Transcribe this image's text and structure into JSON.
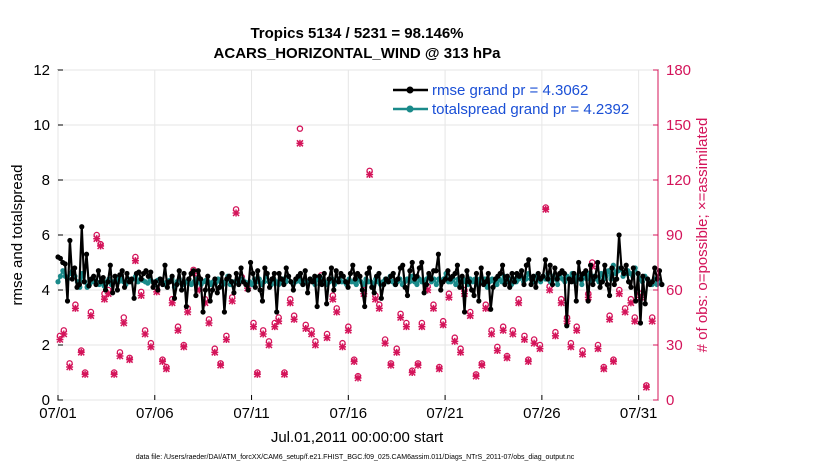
{
  "chart_data": {
    "type": "line",
    "title": "Tropics 5134 / 5231 = 98.146%",
    "subtitle": "ACARS_HORIZONTAL_WIND @ 313 hPa",
    "xlabel": "Jul.01,2011 00:00:00 start",
    "ylabel_left": "rmse and totalspread",
    "ylabel_right": "# of obs: o=possible; ×=assimilated",
    "footer": "data file: /Users/raeder/DAI/ATM_forcXX/CAM6_setup/f.e21.FHIST_BGC.f09_025.CAM6assim.011/Diags_NTrS_2011-07/obs_diag_output.nc",
    "x_tick_labels": [
      "07/01",
      "07/06",
      "07/11",
      "07/16",
      "07/21",
      "07/26",
      "07/31"
    ],
    "x_tick_days": [
      1,
      6,
      11,
      16,
      21,
      26,
      31
    ],
    "xlim": [
      1,
      32
    ],
    "ylim_left": [
      0,
      12
    ],
    "yticks_left": [
      "0",
      "2",
      "4",
      "6",
      "8",
      "10",
      "12"
    ],
    "ylim_right": [
      0,
      180
    ],
    "yticks_right": [
      "0",
      "30",
      "60",
      "90",
      "120",
      "150",
      "180"
    ],
    "legend_position": "top-right",
    "colors": {
      "rmse": "#000000",
      "spread": "#1a8a8a",
      "obs": "#d4145a",
      "legend_text": "#1a4fd6"
    },
    "series": [
      {
        "name": "rmse grand pr = 4.3062",
        "axis": "left",
        "values": [
          5.2,
          5.15,
          5.0,
          4.95,
          3.6,
          5.8,
          4.4,
          4.8,
          4.1,
          4.2,
          6.3,
          4.3,
          5.3,
          4.15,
          4.4,
          4.5,
          4.2,
          4.7,
          4.3,
          4.45,
          4.0,
          4.3,
          4.9,
          3.9,
          4.5,
          4.0,
          4.55,
          4.7,
          4.1,
          4.6,
          4.3,
          4.4,
          3.7,
          4.6,
          4.65,
          4.4,
          4.6,
          4.7,
          4.5,
          4.65,
          4.1,
          4.3,
          4.0,
          4.4,
          4.2,
          4.9,
          4.1,
          4.3,
          4.5,
          3.7,
          4.2,
          4.7,
          4.0,
          4.6,
          3.4,
          4.4,
          4.6,
          4.7,
          3.8,
          4.7,
          4.4,
          3.2,
          4.0,
          4.5,
          3.6,
          4.0,
          4.4,
          3.9,
          4.1,
          4.6,
          3.2,
          4.4,
          4.5,
          4.3,
          3.9,
          4.6,
          4.2,
          4.8,
          4.3,
          4.2,
          4.0,
          5.0,
          4.6,
          4.1,
          4.7,
          4.0,
          3.6,
          4.8,
          4.6,
          4.1,
          4.4,
          4.6,
          3.2,
          4.6,
          4.4,
          4.2,
          4.8,
          4.5,
          4.3,
          4.0,
          4.4,
          4.5,
          4.6,
          4.2,
          4.7,
          3.9,
          4.4,
          4.3,
          4.5,
          3.4,
          4.5,
          4.2,
          4.6,
          3.5,
          4.4,
          4.8,
          4.0,
          4.7,
          4.3,
          4.6,
          4.5,
          4.3,
          4.1,
          4.6,
          4.9,
          4.4,
          4.6,
          4.5,
          4.0,
          3.4,
          4.6,
          4.8,
          4.1,
          3.9,
          4.5,
          4.6,
          3.7,
          4.2,
          4.4,
          4.3,
          4.5,
          4.6,
          4.2,
          4.4,
          4.8,
          4.9,
          4.1,
          3.8,
          4.7,
          5.0,
          4.4,
          4.5,
          4.8,
          5.0,
          3.9,
          4.2,
          4.6,
          4.4,
          4.7,
          4.7,
          5.3,
          4.0,
          4.3,
          4.4,
          4.7,
          4.4,
          4.5,
          4.6,
          4.9,
          4.1,
          4.5,
          3.2,
          4.7,
          4.3,
          4.0,
          3.8,
          4.6,
          3.6,
          4.8,
          4.2,
          4.3,
          4.6,
          3.3,
          4.1,
          4.4,
          4.5,
          4.6,
          4.9,
          4.2,
          4.5,
          4.1,
          4.6,
          4.3,
          4.6,
          4.5,
          4.7,
          4.2,
          4.9,
          5.1,
          4.2,
          4.5,
          4.1,
          4.6,
          4.4,
          4.5,
          5.1,
          4.4,
          4.9,
          4.2,
          4.8,
          4.4,
          4.6,
          4.7,
          4.6,
          2.7,
          4.4,
          4.3,
          4.6,
          3.6,
          5.0,
          4.4,
          4.6,
          4.7,
          3.6,
          4.9,
          4.2,
          4.5,
          5.0,
          4.1,
          4.3,
          4.9,
          4.2,
          3.8,
          4.8,
          4.2,
          4.4,
          6.0,
          4.8,
          4.6,
          4.9,
          4.3,
          4.1,
          4.8,
          3.6,
          4.6,
          2.8,
          4.5,
          3.5,
          4.4,
          4.2,
          4.3,
          4.8,
          4.4,
          4.7,
          4.2
        ]
      },
      {
        "name": "totalspread grand pr = 4.2392",
        "axis": "left",
        "values": [
          4.3,
          4.5,
          4.7,
          4.5,
          4.4,
          4.6,
          4.7,
          4.5,
          4.3,
          4.1,
          4.6,
          4.3,
          4.1,
          4.2,
          4.3,
          4.35,
          4.3,
          4.2,
          4.3,
          4.15,
          4.3,
          4.4,
          4.2,
          4.3,
          4.45,
          4.3,
          4.4,
          4.3,
          4.2,
          4.4,
          4.3,
          4.4,
          4.5,
          4.3,
          4.4,
          4.35,
          4.3,
          4.25,
          4.4,
          4.3,
          4.2,
          4.35,
          4.4,
          4.3,
          4.2,
          4.3,
          4.35,
          4.4,
          4.1,
          4.3,
          4.4,
          4.25,
          4.2,
          4.3,
          4.4,
          4.2,
          4.3,
          4.4,
          4.3,
          4.2,
          4.3,
          4.35,
          4.3,
          4.2,
          4.3,
          4.25,
          4.4,
          4.3,
          4.2,
          4.3,
          4.5,
          4.2,
          4.3,
          4.3,
          4.4,
          4.3,
          4.4,
          4.3,
          4.2,
          4.3,
          4.2,
          4.4,
          4.3,
          4.4,
          4.2,
          4.3,
          4.5,
          4.3,
          4.2,
          4.4,
          4.3,
          4.2,
          4.3,
          4.4,
          4.3,
          4.5,
          4.3,
          4.2,
          4.3,
          4.4,
          4.3,
          4.2,
          4.3,
          4.3,
          4.4,
          4.3,
          4.2,
          4.4,
          4.3,
          4.4,
          4.3,
          4.2,
          4.3,
          4.4,
          4.2,
          4.3,
          4.4,
          4.3,
          4.3,
          4.2,
          4.4,
          4.3,
          4.3,
          4.2,
          4.4,
          4.3,
          4.2,
          4.4,
          4.3,
          4.3,
          4.2,
          4.4,
          4.3,
          4.2,
          4.3,
          4.4,
          4.3,
          4.5,
          4.3,
          4.2,
          4.3,
          4.4,
          4.2,
          4.3,
          4.4,
          4.3,
          4.5,
          4.3,
          4.2,
          4.4,
          4.3,
          4.3,
          4.4,
          4.5,
          4.3,
          4.4,
          4.2,
          4.4,
          4.3,
          4.4,
          4.6,
          4.3,
          4.3,
          4.4,
          4.2,
          4.4,
          4.3,
          4.4,
          4.3,
          4.2,
          4.4,
          4.3,
          4.4,
          4.2,
          4.4,
          4.3,
          4.4,
          4.1,
          4.3,
          4.4,
          4.3,
          4.2,
          4.4,
          4.3,
          4.5,
          4.3,
          4.4,
          4.2,
          4.4,
          4.3,
          4.4,
          4.5,
          4.3,
          4.4,
          4.6,
          4.4,
          4.3,
          4.5,
          4.4,
          4.3,
          4.5,
          4.4,
          4.6,
          4.3,
          4.5,
          4.4,
          4.2,
          4.6,
          4.4,
          4.3,
          4.5,
          4.4,
          4.6,
          4.3,
          4.5,
          4.4,
          4.2,
          4.5,
          4.4,
          4.6,
          4.3,
          4.5,
          4.4,
          4.3,
          4.6,
          4.4,
          4.5,
          4.7,
          4.4,
          4.9,
          4.6,
          4.7,
          4.8,
          4.5,
          4.6,
          4.7,
          4.6,
          4.5,
          4.8,
          4.6,
          4.4,
          4.3,
          4.5,
          4.4,
          4.3,
          4.2,
          4.4,
          4.2,
          4.3,
          4.2
        ]
      },
      {
        "name": "possible observations",
        "axis": "right",
        "marker": "o",
        "x": [
          1.1,
          1.3,
          1.6,
          1.9,
          2.2,
          2.4,
          2.7,
          3.0,
          3.2,
          3.4,
          3.6,
          3.9,
          4.2,
          4.4,
          4.7,
          5.0,
          5.3,
          5.5,
          5.8,
          6.1,
          6.4,
          6.6,
          6.9,
          7.2,
          7.5,
          7.7,
          8.0,
          8.3,
          8.6,
          8.8,
          9.1,
          9.4,
          9.7,
          10.0,
          10.2,
          10.5,
          10.8,
          11.1,
          11.3,
          11.6,
          11.9,
          12.2,
          12.4,
          12.7,
          13.0,
          13.2,
          13.5,
          13.8,
          14.1,
          14.3,
          14.6,
          14.9,
          15.2,
          15.4,
          15.7,
          16.0,
          16.3,
          16.5,
          16.8,
          17.1,
          17.4,
          17.6,
          17.9,
          18.2,
          18.5,
          18.7,
          19.0,
          19.3,
          19.6,
          19.8,
          20.1,
          20.4,
          20.7,
          20.9,
          21.2,
          21.5,
          21.8,
          22.0,
          22.3,
          22.6,
          22.9,
          23.1,
          23.4,
          23.7,
          24.0,
          24.2,
          24.5,
          24.8,
          25.1,
          25.3,
          25.6,
          25.9,
          26.2,
          26.4,
          26.7,
          27.0,
          27.3,
          27.5,
          27.8,
          28.1,
          28.4,
          28.6,
          28.9,
          29.2,
          29.5,
          29.7,
          30.0,
          30.3,
          30.6,
          30.8,
          31.1,
          31.4,
          31.7
        ],
        "values": [
          35,
          38,
          20,
          52,
          27,
          15,
          48,
          90,
          85,
          58,
          60,
          15,
          26,
          45,
          23,
          78,
          59,
          38,
          31,
          61,
          22,
          18,
          55,
          40,
          30,
          50,
          71,
          62,
          55,
          44,
          28,
          20,
          35,
          56,
          104,
          67,
          63,
          42,
          15,
          38,
          32,
          42,
          45,
          15,
          55,
          46,
          148,
          41,
          38,
          32,
          68,
          36,
          57,
          50,
          31,
          40,
          22,
          13,
          60,
          125,
          57,
          52,
          33,
          20,
          28,
          47,
          42,
          16,
          20,
          42,
          62,
          52,
          18,
          43,
          58,
          34,
          28,
          60,
          48,
          14,
          20,
          52,
          38,
          29,
          40,
          24,
          38,
          55,
          35,
          22,
          33,
          30,
          105,
          62,
          37,
          55,
          45,
          31,
          40,
          27,
          58,
          75,
          30,
          18,
          46,
          22,
          60,
          50,
          55,
          45,
          58,
          8,
          45
        ]
      },
      {
        "name": "assimilated observations",
        "axis": "right",
        "marker": "x",
        "x": [
          1.1,
          1.3,
          1.6,
          1.9,
          2.2,
          2.4,
          2.7,
          3.0,
          3.2,
          3.4,
          3.6,
          3.9,
          4.2,
          4.4,
          4.7,
          5.0,
          5.3,
          5.5,
          5.8,
          6.1,
          6.4,
          6.6,
          6.9,
          7.2,
          7.5,
          7.7,
          8.0,
          8.3,
          8.6,
          8.8,
          9.1,
          9.4,
          9.7,
          10.0,
          10.2,
          10.5,
          10.8,
          11.1,
          11.3,
          11.6,
          11.9,
          12.2,
          12.4,
          12.7,
          13.0,
          13.2,
          13.5,
          13.8,
          14.1,
          14.3,
          14.6,
          14.9,
          15.2,
          15.4,
          15.7,
          16.0,
          16.3,
          16.5,
          16.8,
          17.1,
          17.4,
          17.6,
          17.9,
          18.2,
          18.5,
          18.7,
          19.0,
          19.3,
          19.6,
          19.8,
          20.1,
          20.4,
          20.7,
          20.9,
          21.2,
          21.5,
          21.8,
          22.0,
          22.3,
          22.6,
          22.9,
          23.1,
          23.4,
          23.7,
          24.0,
          24.2,
          24.5,
          24.8,
          25.1,
          25.3,
          25.6,
          25.9,
          26.2,
          26.4,
          26.7,
          27.0,
          27.3,
          27.5,
          27.8,
          28.1,
          28.4,
          28.6,
          28.9,
          29.2,
          29.5,
          29.7,
          30.0,
          30.3,
          30.6,
          30.8,
          31.1,
          31.4,
          31.7
        ],
        "values": [
          33,
          36,
          18,
          50,
          26,
          14,
          46,
          88,
          84,
          55,
          58,
          14,
          24,
          42,
          22,
          76,
          57,
          36,
          29,
          59,
          21,
          17,
          53,
          38,
          29,
          48,
          69,
          60,
          53,
          42,
          26,
          19,
          33,
          54,
          102,
          65,
          61,
          40,
          14,
          36,
          30,
          40,
          43,
          14,
          53,
          44,
          140,
          39,
          36,
          30,
          66,
          34,
          55,
          48,
          29,
          38,
          21,
          12,
          58,
          123,
          55,
          50,
          31,
          19,
          26,
          45,
          40,
          15,
          19,
          40,
          60,
          50,
          17,
          41,
          56,
          32,
          26,
          58,
          46,
          13,
          19,
          50,
          36,
          27,
          38,
          23,
          36,
          53,
          33,
          21,
          31,
          28,
          104,
          60,
          35,
          53,
          43,
          29,
          38,
          25,
          56,
          73,
          28,
          17,
          44,
          21,
          58,
          48,
          53,
          43,
          56,
          7,
          43
        ]
      }
    ]
  }
}
